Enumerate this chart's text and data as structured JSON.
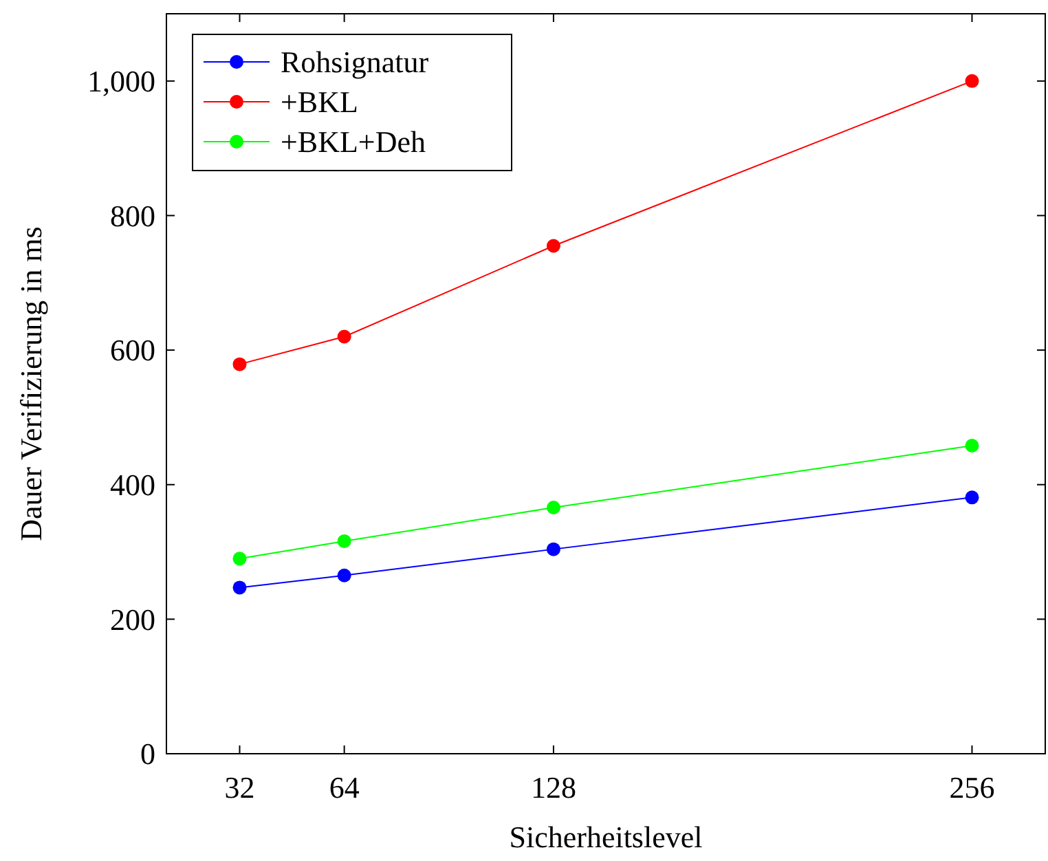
{
  "chart_data": {
    "type": "line",
    "xlabel": "Sicherheitslevel",
    "ylabel": "Dauer Verifizierung in ms",
    "x": [
      32,
      64,
      128,
      256
    ],
    "series": [
      {
        "name": "Rohsignatur",
        "color": "#0000ff",
        "values": [
          247,
          265,
          304,
          381
        ]
      },
      {
        "name": "+BKL",
        "color": "#ff0000",
        "values": [
          579,
          620,
          755,
          1000
        ]
      },
      {
        "name": "+BKL+Deh",
        "color": "#00ff00",
        "values": [
          290,
          316,
          366,
          458
        ]
      }
    ],
    "xlim": [
      9.6,
      278.4
    ],
    "xticks": [
      32,
      64,
      128,
      256
    ],
    "ylim": [
      0,
      1100
    ],
    "yticks": [
      0,
      200,
      400,
      600,
      800,
      {
        "value": 1000,
        "label": "1,000"
      }
    ],
    "marker": "circle",
    "line_style": "solid",
    "legend": "top left",
    "grid": false
  }
}
